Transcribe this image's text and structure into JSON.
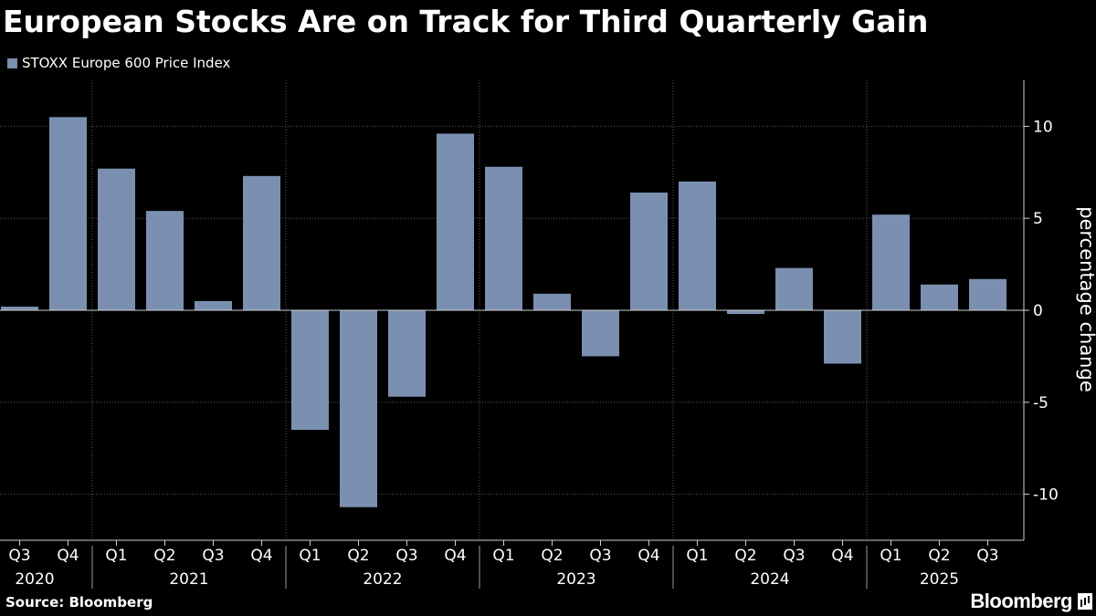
{
  "chart_data": {
    "type": "bar",
    "title": "European Stocks Are on Track for Third Quarterly Gain",
    "series": [
      {
        "name": "STOXX Europe 600 Price Index",
        "color": "#7b8fb0",
        "values": [
          0.2,
          10.5,
          7.7,
          5.4,
          0.5,
          7.3,
          -6.5,
          -10.7,
          -4.7,
          9.6,
          7.8,
          0.9,
          -2.5,
          6.4,
          7.0,
          -0.2,
          2.3,
          -2.9,
          5.2,
          1.4,
          1.7
        ]
      }
    ],
    "categories": [
      "Q3",
      "Q4",
      "Q1",
      "Q2",
      "Q3",
      "Q4",
      "Q1",
      "Q2",
      "Q3",
      "Q4",
      "Q1",
      "Q2",
      "Q3",
      "Q4",
      "Q1",
      "Q2",
      "Q3",
      "Q4",
      "Q1",
      "Q2",
      "Q3"
    ],
    "years": [
      {
        "label": "2020",
        "start": 0,
        "end": 1
      },
      {
        "label": "2021",
        "start": 2,
        "end": 5
      },
      {
        "label": "2022",
        "start": 6,
        "end": 9
      },
      {
        "label": "2023",
        "start": 10,
        "end": 13
      },
      {
        "label": "2024",
        "start": 14,
        "end": 17
      },
      {
        "label": "2025",
        "start": 18,
        "end": 20
      }
    ],
    "ylabel": "percentage change",
    "ylim": [
      -12.5,
      12.5
    ],
    "yticks": [
      10,
      5,
      0,
      -5,
      -10
    ],
    "ytick_labels": [
      "10",
      "5",
      "0",
      "-5",
      "-10"
    ],
    "y_axis_side": "right",
    "grid": true
  },
  "footer": {
    "source": "Source: Bloomberg",
    "brand": "Bloomberg"
  }
}
